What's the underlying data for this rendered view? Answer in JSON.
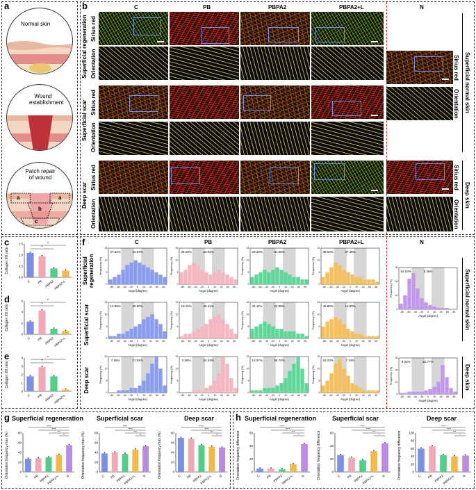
{
  "panels": {
    "a": "a",
    "b": "b",
    "c": "c",
    "d": "d",
    "e": "e",
    "f": "f",
    "g": "g",
    "h": "h"
  },
  "a": {
    "labels": [
      "Normal skin",
      "Wound establishment",
      "Patch repair of wound"
    ],
    "region_letters": [
      "a",
      "b",
      "a",
      "c"
    ]
  },
  "b": {
    "columns": [
      "C",
      "PB",
      "PBPA2",
      "PBPA2+L",
      "N"
    ],
    "row_groups": [
      "Superficial regeneration",
      "Superficial scar",
      "Deep scar"
    ],
    "row_types": [
      "Sirius red",
      "Orientation"
    ],
    "right_labels": [
      "Superficial normal skin",
      "Deep skin"
    ],
    "n_labels": [
      "Sirius red",
      "Orientation",
      "Sirius red",
      "Orientation"
    ]
  },
  "bar_charts": {
    "ylabel": "Collagen I/III ratio",
    "categories": [
      "C",
      "PB",
      "PBPA2",
      "PBPA2+L"
    ],
    "colors": [
      "#7a8fe6",
      "#f2a8b4",
      "#4fcf86",
      "#f2b94a"
    ],
    "sig": "*",
    "c": {
      "values": [
        1.1,
        0.95,
        0.4,
        0.3
      ],
      "ylim": [
        0,
        1.5
      ],
      "ticks": [
        "0.0",
        "0.5",
        "1.0",
        "1.5"
      ]
    },
    "d": {
      "values": [
        2.3,
        4.3,
        1.0,
        0.6
      ],
      "ylim": [
        0,
        6
      ],
      "ticks": [
        "0",
        "2",
        "4",
        "6"
      ]
    },
    "e": {
      "values": [
        1.8,
        2.9,
        1.8,
        0.2
      ],
      "ylim": [
        0,
        4
      ],
      "ticks": [
        "0",
        "1",
        "2",
        "3",
        "4"
      ]
    }
  },
  "f": {
    "columns": [
      "C",
      "PB",
      "PBPA2",
      "PBPA2+L",
      "N"
    ],
    "rows": [
      "Superficial regeneration",
      "Superficial scar",
      "Deep scar"
    ],
    "right_labels": [
      "Superficial normal skin",
      "Deep skin"
    ],
    "ylabel": "Frequency (%)",
    "xlabel": "Angel (degree)",
    "xticks": [
      "-80",
      "-60",
      "-40",
      "-20",
      "0",
      "20",
      "40",
      "60",
      "80"
    ],
    "percents": [
      [
        "27.84%",
        "22.03%"
      ],
      [
        "29.29%",
        "23.03%"
      ],
      [
        "29.40%",
        "31.05%"
      ],
      [
        "39.53%",
        "27.48%"
      ],
      [
        "12.58%",
        "40.90%"
      ],
      [
        "18.16%",
        "40.41%"
      ],
      [
        "34.11%",
        "22.99%"
      ],
      [
        "45.89%",
        "14.80%"
      ],
      [
        "7.18%",
        "71.82%"
      ],
      [
        "3.38%",
        "63.34%"
      ],
      [
        "13.07%",
        "56.70%"
      ],
      [
        "53.23%",
        "7.44%"
      ]
    ],
    "n_percents": [
      [
        "62.53%",
        "9.35%"
      ],
      [
        "9.02%",
        "52.77%"
      ]
    ]
  },
  "g": {
    "titles": [
      "Superficial regeneration",
      "Superficial scar",
      "Deep scar"
    ],
    "ylabel": "Orientation frequency max (%)",
    "categories": [
      "C",
      "PB",
      "PBPA2",
      "PBPA2+L",
      "N"
    ],
    "colors": [
      "#7a8fe6",
      "#f2a8b4",
      "#4fcf86",
      "#f2b94a",
      "#b98ae6"
    ],
    "charts": [
      {
        "values": [
          27,
          28,
          30,
          35,
          55
        ],
        "ylim": [
          0,
          80
        ],
        "ticks": [
          "0",
          "20",
          "40",
          "60",
          "80"
        ]
      },
      {
        "values": [
          38,
          40,
          37,
          46,
          53
        ],
        "ylim": [
          0,
          80
        ],
        "ticks": [
          "0",
          "20",
          "40",
          "60",
          "80"
        ]
      },
      {
        "values": [
          70,
          68,
          55,
          52,
          50
        ],
        "ylim": [
          0,
          80
        ],
        "ticks": [
          "0",
          "20",
          "40",
          "60",
          "80"
        ]
      }
    ],
    "sigs": [
      "****",
      "****",
      "***",
      "**"
    ]
  },
  "h": {
    "titles": [
      "Superficial regeneration",
      "Superficial scar",
      "Deep scar"
    ],
    "ylabel": "Orientation frequency difference",
    "categories": [
      "C",
      "PB",
      "PBPA2",
      "PBPA2+L",
      "N"
    ],
    "colors": [
      "#7a8fe6",
      "#f2a8b4",
      "#4fcf86",
      "#f2b94a",
      "#b98ae6"
    ],
    "charts": [
      {
        "values": [
          5,
          5,
          4,
          12,
          43
        ],
        "ylim": [
          0,
          60
        ],
        "ticks": [
          "0",
          "20",
          "40",
          "60"
        ]
      },
      {
        "values": [
          26,
          22,
          18,
          32,
          44
        ],
        "ylim": [
          0,
          60
        ],
        "ticks": [
          "0",
          "20",
          "40",
          "60"
        ]
      },
      {
        "values": [
          60,
          66,
          43,
          40,
          42
        ],
        "ylim": [
          0,
          100
        ],
        "ticks": [
          "0",
          "20",
          "40",
          "60",
          "80",
          "100"
        ]
      }
    ],
    "sigs": [
      "****",
      "****",
      "***",
      "*"
    ]
  },
  "chart_data": [
    {
      "type": "bar",
      "panel": "c",
      "categories": [
        "C",
        "PB",
        "PBPA2",
        "PBPA2+L"
      ],
      "values": [
        1.1,
        0.95,
        0.4,
        0.3
      ],
      "ylabel": "Collagen I/III ratio",
      "ylim": [
        0,
        1.5
      ]
    },
    {
      "type": "bar",
      "panel": "d",
      "categories": [
        "C",
        "PB",
        "PBPA2",
        "PBPA2+L"
      ],
      "values": [
        2.3,
        4.3,
        1.0,
        0.6
      ],
      "ylabel": "Collagen I/III ratio",
      "ylim": [
        0,
        6
      ]
    },
    {
      "type": "bar",
      "panel": "e",
      "categories": [
        "C",
        "PB",
        "PBPA2",
        "PBPA2+L"
      ],
      "values": [
        1.8,
        2.9,
        1.8,
        0.2
      ],
      "ylabel": "Collagen I/III ratio",
      "ylim": [
        0,
        4
      ]
    }
  ]
}
